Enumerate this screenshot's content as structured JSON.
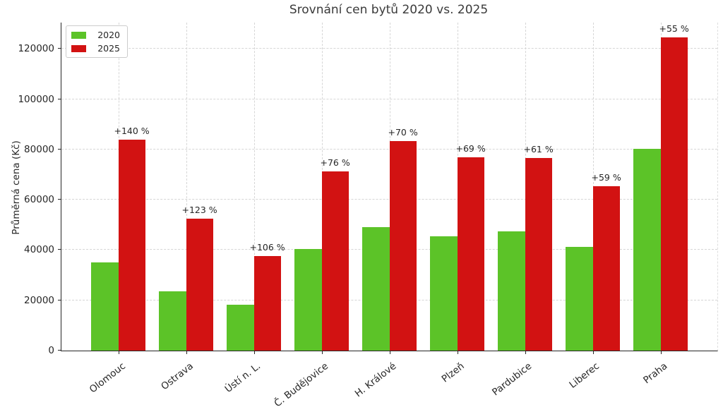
{
  "chart_data": {
    "type": "bar",
    "title": "Srovnání cen bytů 2020 vs. 2025",
    "ylabel": "Průměrná cena (Kč)",
    "xlabel": "",
    "categories": [
      "Olomouc",
      "Ostrava",
      "Ústí n. L.",
      "Č. Budějovice",
      "H. Králové",
      "Plzeň",
      "Pardubice",
      "Liberec",
      "Praha"
    ],
    "series": [
      {
        "name": "2020",
        "color": "#5CC328",
        "values": [
          35000,
          23600,
          18300,
          40500,
          49000,
          45500,
          47500,
          41200,
          80300
        ]
      },
      {
        "name": "2025",
        "color": "#D21212",
        "values": [
          84000,
          52600,
          37700,
          71300,
          83300,
          76900,
          76500,
          65500,
          124500
        ]
      }
    ],
    "annotations": [
      "+140 %",
      "+123 %",
      "+106 %",
      "+76 %",
      "+70 %",
      "+69 %",
      "+61 %",
      "+59 %",
      "+55 %"
    ],
    "yticks": [
      0,
      20000,
      40000,
      60000,
      80000,
      100000,
      120000
    ],
    "ylim": [
      0,
      130500
    ],
    "grid": true,
    "gridline_color": "#d6d6d6",
    "legend_position": "upper left",
    "axis_color": "#262626"
  }
}
